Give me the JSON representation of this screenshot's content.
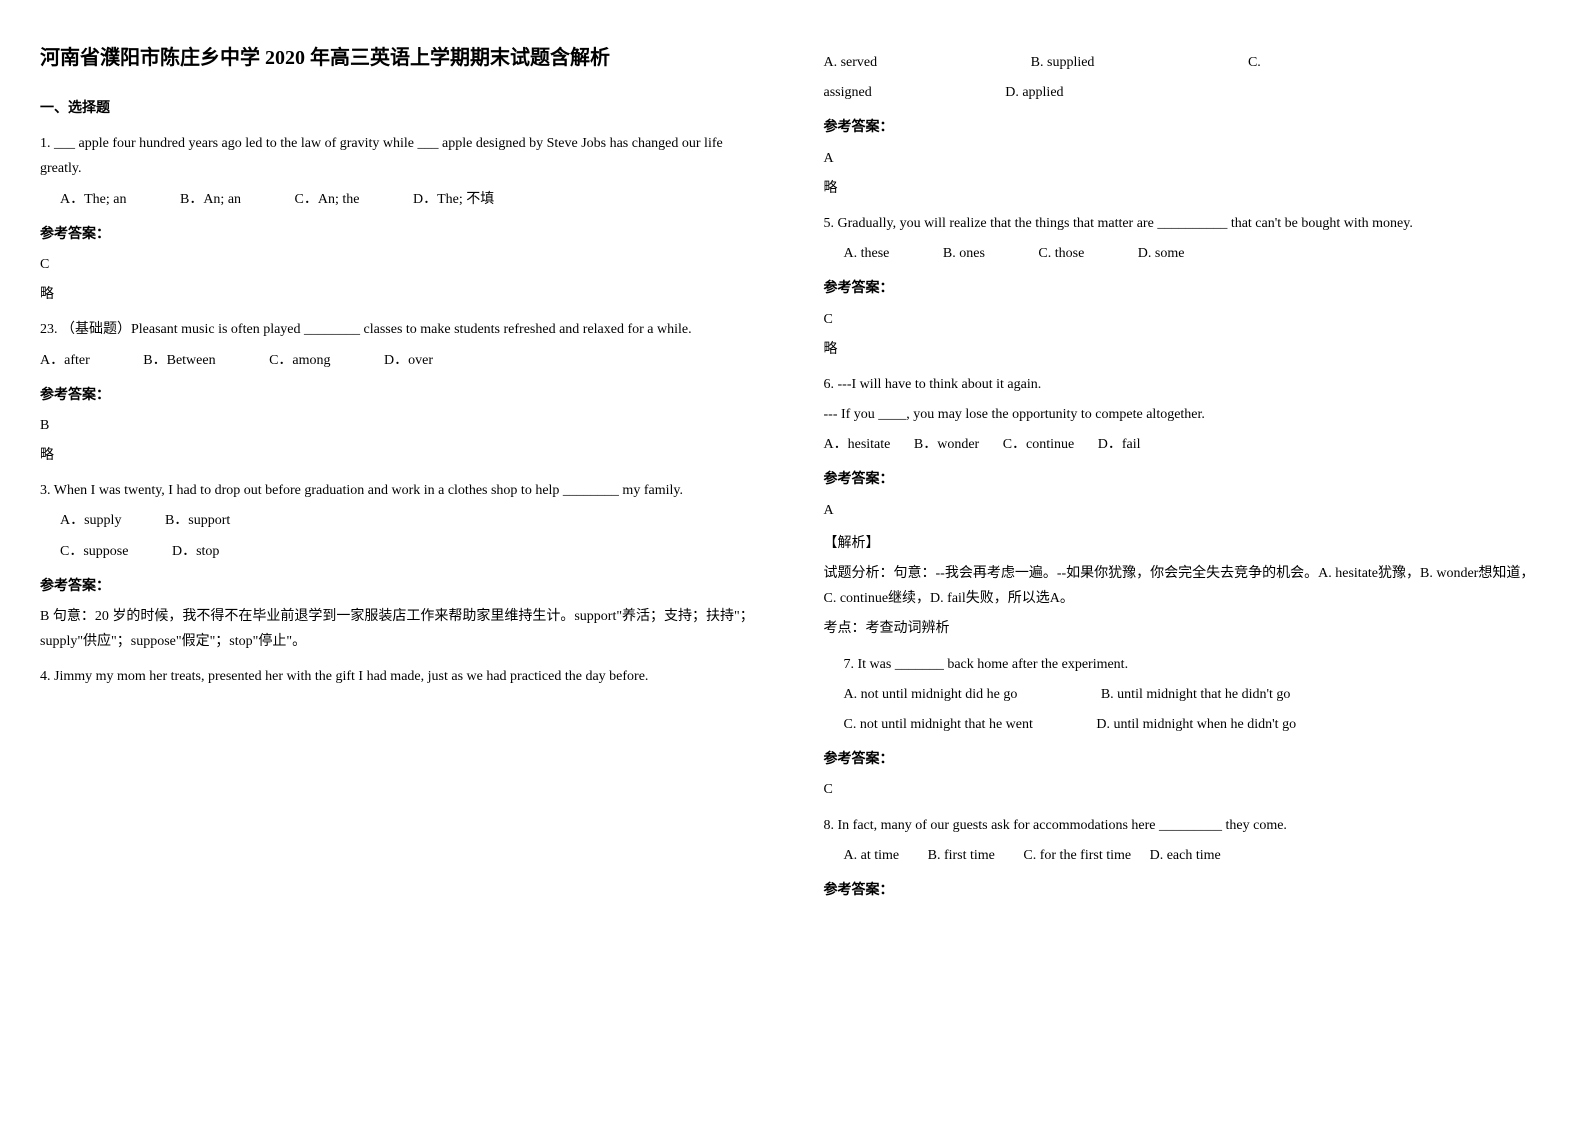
{
  "title": "河南省濮阳市陈庄乡中学 2020 年高三英语上学期期末试题含解析",
  "section1_heading": "一、选择题",
  "q1": {
    "text": "1. ___ apple four hundred years ago led to the law of gravity while ___ apple designed by Steve Jobs has changed our life greatly.",
    "optA": "A．The; an",
    "optB": "B．An; an",
    "optC": "C．An; the",
    "optD": "D．The; 不填",
    "answer_label": "参考答案：",
    "answer": "C",
    "note": "略"
  },
  "q23": {
    "text": "23. （基础题）Pleasant music is often played ________ classes to make students refreshed and relaxed for a while.",
    "optA": "A．after",
    "optB": "B．Between",
    "optC": "C．among",
    "optD": "D．over",
    "answer_label": "参考答案：",
    "answer": "B",
    "note": "略"
  },
  "q3": {
    "text": "3. When I was twenty, I had to drop out before graduation and work in a clothes shop to help ________ my family.",
    "optA": "A．supply",
    "optB": "B．support",
    "optC": "C．suppose",
    "optD": "D．stop",
    "answer_label": "参考答案：",
    "answer": "B",
    "explanation": "句意：20 岁的时候，我不得不在毕业前退学到一家服装店工作来帮助家里维持生计。support\"养活；支持；扶持\"；supply\"供应\"；suppose\"假定\"；stop\"停止\"。"
  },
  "q4": {
    "text": "4. Jimmy    my mom her treats, presented her with the gift I had made, just as we had practiced the day before.",
    "optA": "A. served",
    "optB": "B. supplied",
    "optC": "C. assigned",
    "optD": "D. applied",
    "answer_label": "参考答案：",
    "answer": "A",
    "note": "略"
  },
  "q5": {
    "text": "5. Gradually, you will realize that the things that matter are __________ that can't be bought with money.",
    "optA": "A. these",
    "optB": "B. ones",
    "optC": "C. those",
    "optD": "D. some",
    "answer_label": "参考答案：",
    "answer": "C",
    "note": "略"
  },
  "q6": {
    "text1": "6. ---I will have to think about it again.",
    "text2": "--- If you ____, you may lose the opportunity to compete altogether.",
    "optA": "A．hesitate",
    "optB": "B．wonder",
    "optC": "C．continue",
    "optD": "D．fail",
    "answer_label": "参考答案：",
    "answer": "A",
    "analysis_label": "【解析】",
    "analysis": "试题分析：句意：--我会再考虑一遍。--如果你犹豫，你会完全失去竞争的机会。A. hesitate犹豫，B. wonder想知道，C. continue继续，D. fail失败，所以选A。",
    "point": "考点：考查动词辨析"
  },
  "q7": {
    "text": "7. It was _______ back home after the experiment.",
    "optA": "A. not until midnight did he go",
    "optB": "B. until midnight that he didn't go",
    "optC": "C. not until midnight that he went",
    "optD": "D. until midnight when he didn't go",
    "answer_label": "参考答案：",
    "answer": "C"
  },
  "q8": {
    "text": "8. In fact, many of our guests ask for accommodations here _________ they come.",
    "optA": "A. at time",
    "optB": "B. first time",
    "optC": "C. for the first time",
    "optD": "D. each time",
    "answer_label": "参考答案："
  }
}
